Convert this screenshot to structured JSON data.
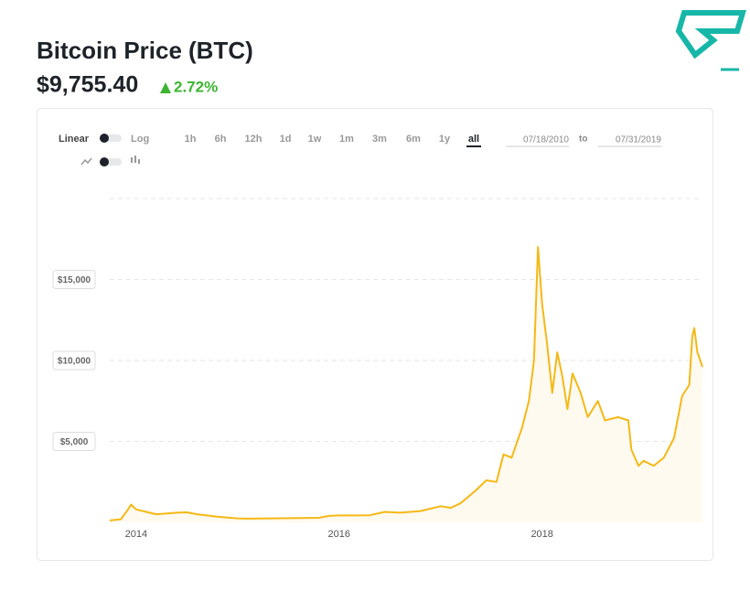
{
  "header": {
    "title": "Bitcoin Price",
    "symbol": "(BTC)",
    "price": "$9,755.40",
    "change": "2.72%"
  },
  "controls": {
    "scale": [
      "Linear",
      "Log"
    ],
    "periods": [
      "1h",
      "6h",
      "12h",
      "1d",
      "1w",
      "1m",
      "3m",
      "6m",
      "1y",
      "all"
    ],
    "active_period": "all",
    "from": "07/18/2010",
    "to_label": "to",
    "to": "07/31/2019"
  },
  "chart_data": {
    "type": "line",
    "color": "#f5b816",
    "area_color": "#fffaf0",
    "x": [
      2013.74,
      2013.85,
      2013.92,
      2013.95,
      2014.0,
      2014.1,
      2014.2,
      2014.4,
      2014.5,
      2014.6,
      2014.8,
      2015.0,
      2015.1,
      2015.5,
      2015.8,
      2015.9,
      2016.0,
      2016.3,
      2016.45,
      2016.6,
      2016.8,
      2017.0,
      2017.1,
      2017.2,
      2017.35,
      2017.45,
      2017.55,
      2017.62,
      2017.7,
      2017.8,
      2017.87,
      2017.92,
      2017.96,
      2018.0,
      2018.05,
      2018.1,
      2018.15,
      2018.2,
      2018.25,
      2018.3,
      2018.38,
      2018.45,
      2018.55,
      2018.62,
      2018.75,
      2018.85,
      2018.88,
      2018.95,
      2019.0,
      2019.1,
      2019.2,
      2019.3,
      2019.38,
      2019.45,
      2019.48,
      2019.5,
      2019.53,
      2019.58
    ],
    "values": [
      120,
      200,
      800,
      1100,
      800,
      650,
      500,
      600,
      620,
      500,
      350,
      250,
      230,
      260,
      280,
      400,
      430,
      440,
      650,
      600,
      700,
      1000,
      900,
      1200,
      2000,
      2600,
      2500,
      4200,
      4000,
      5800,
      7500,
      10000,
      17000,
      13500,
      11000,
      8000,
      10500,
      9000,
      7000,
      9200,
      8000,
      6500,
      7500,
      6300,
      6500,
      6300,
      4500,
      3500,
      3800,
      3500,
      4000,
      5200,
      7800,
      8500,
      11500,
      12000,
      10500,
      9600
    ],
    "xlim": [
      2013.74,
      2019.58
    ],
    "xticks": [
      2014,
      2016,
      2018
    ],
    "ylim": [
      0,
      20000
    ],
    "yticks": [
      {
        "value": 5000,
        "label": "$5,000"
      },
      {
        "value": 10000,
        "label": "$10,000"
      },
      {
        "value": 15000,
        "label": "$15,000"
      }
    ],
    "grid": true
  }
}
